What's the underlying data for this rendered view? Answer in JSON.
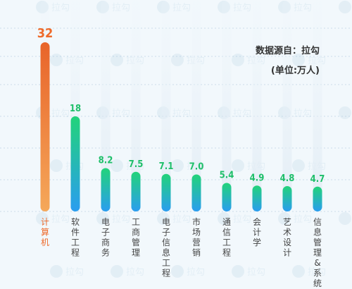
{
  "chart_data": {
    "type": "bar",
    "categories": [
      "计算机",
      "软件工程",
      "电子商务",
      "工商管理",
      "电子信息工程",
      "市场营销",
      "通信工程",
      "会计学",
      "艺术设计",
      "信息管理&系统"
    ],
    "values": [
      32,
      18,
      8.2,
      7.5,
      7.1,
      7.0,
      5.4,
      4.9,
      4.8,
      4.7
    ],
    "value_labels": [
      "32",
      "18",
      "8.2",
      "7.5",
      "7.1",
      "7.0",
      "5.4",
      "4.9",
      "4.8",
      "4.7"
    ],
    "highlight_index": 0,
    "grid": true,
    "watermark": "拉勾",
    "colors": {
      "highlight_top": "#e8642a",
      "highlight_bottom": "#f5a85a",
      "bar_top": "#22d37a",
      "bar_bottom": "#2a9df0",
      "label_green": "#1fbf6a",
      "label_orange": "#ee6a2a",
      "track": "#e4eff7",
      "grid": "#bcd3e3"
    }
  },
  "source": {
    "line1": "数据源自：拉勾",
    "line2": "(单位:万人)"
  }
}
